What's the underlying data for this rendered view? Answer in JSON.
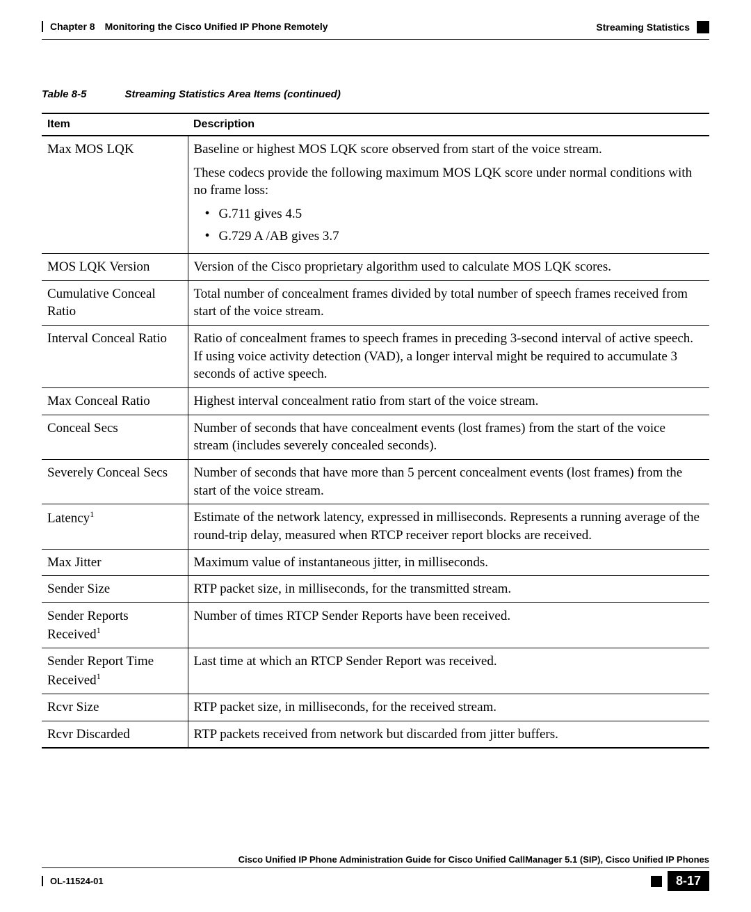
{
  "header": {
    "left": "Chapter 8 Monitoring the Cisco Unified IP Phone Remotely",
    "right": "Streaming Statistics"
  },
  "table": {
    "number": "Table 8-5",
    "title": "Streaming Statistics Area Items (continued)",
    "columns": {
      "item": "Item",
      "description": "Description"
    },
    "rows": {
      "max_mos_lqk": {
        "item": "Max MOS LQK",
        "p1": "Baseline or highest MOS LQK score observed from start of the voice stream.",
        "p2": "These codecs provide the following maximum MOS LQK score under normal conditions with no frame loss:",
        "b1": "G.711 gives 4.5",
        "b2": "G.729 A /AB gives 3.7"
      },
      "mos_lqk_version": {
        "item": "MOS LQK Version",
        "desc": "Version of the Cisco proprietary algorithm used to calculate MOS LQK scores."
      },
      "cum_conceal_ratio": {
        "item": "Cumulative Conceal Ratio",
        "desc": "Total number of concealment frames divided by total number of speech frames received from start of the voice stream."
      },
      "interval_conceal_ratio": {
        "item": "Interval Conceal Ratio",
        "desc": "Ratio of concealment frames to speech frames in preceding 3-second interval of active speech. If using voice activity detection (VAD), a longer interval might be required to accumulate 3 seconds of active speech."
      },
      "max_conceal_ratio": {
        "item": "Max Conceal Ratio",
        "desc": "Highest interval concealment ratio from start of the voice stream."
      },
      "conceal_secs": {
        "item": "Conceal Secs",
        "desc": "Number of seconds that have concealment events (lost frames) from the start of the voice stream (includes severely concealed seconds)."
      },
      "severely_conceal_secs": {
        "item": "Severely Conceal Secs",
        "desc": "Number of seconds that have more than 5 percent concealment events (lost frames) from the start of the voice stream."
      },
      "latency": {
        "item": "Latency",
        "desc": "Estimate of the network latency, expressed in milliseconds. Represents a running average of the round-trip delay, measured when RTCP receiver report blocks are received."
      },
      "max_jitter": {
        "item": "Max Jitter",
        "desc": "Maximum value of instantaneous jitter, in milliseconds."
      },
      "sender_size": {
        "item": "Sender Size",
        "desc": "RTP packet size, in milliseconds, for the transmitted stream."
      },
      "sender_reports_received": {
        "item": "Sender Reports Received",
        "desc": "Number of times RTCP Sender Reports have been received."
      },
      "sender_report_time_received": {
        "item": "Sender Report Time Received",
        "desc": "Last time at which an RTCP Sender Report was received."
      },
      "rcvr_size": {
        "item": "Rcvr Size",
        "desc": "RTP packet size, in milliseconds, for the received stream."
      },
      "rcvr_discarded": {
        "item": "Rcvr Discarded",
        "desc": "RTP packets received from network but discarded from jitter buffers."
      }
    }
  },
  "footer": {
    "title": "Cisco Unified IP Phone Administration Guide for Cisco Unified CallManager 5.1 (SIP), Cisco Unified IP Phones",
    "doc_id": "OL-11524-01",
    "page": "8-17"
  },
  "style": {
    "colors": {
      "text": "#000000",
      "bg": "#ffffff",
      "badge_bg": "#000000",
      "badge_fg": "#ffffff"
    },
    "fonts": {
      "serif": "Times New Roman",
      "sans": "Arial"
    },
    "column_widths": {
      "item": 210
    }
  }
}
